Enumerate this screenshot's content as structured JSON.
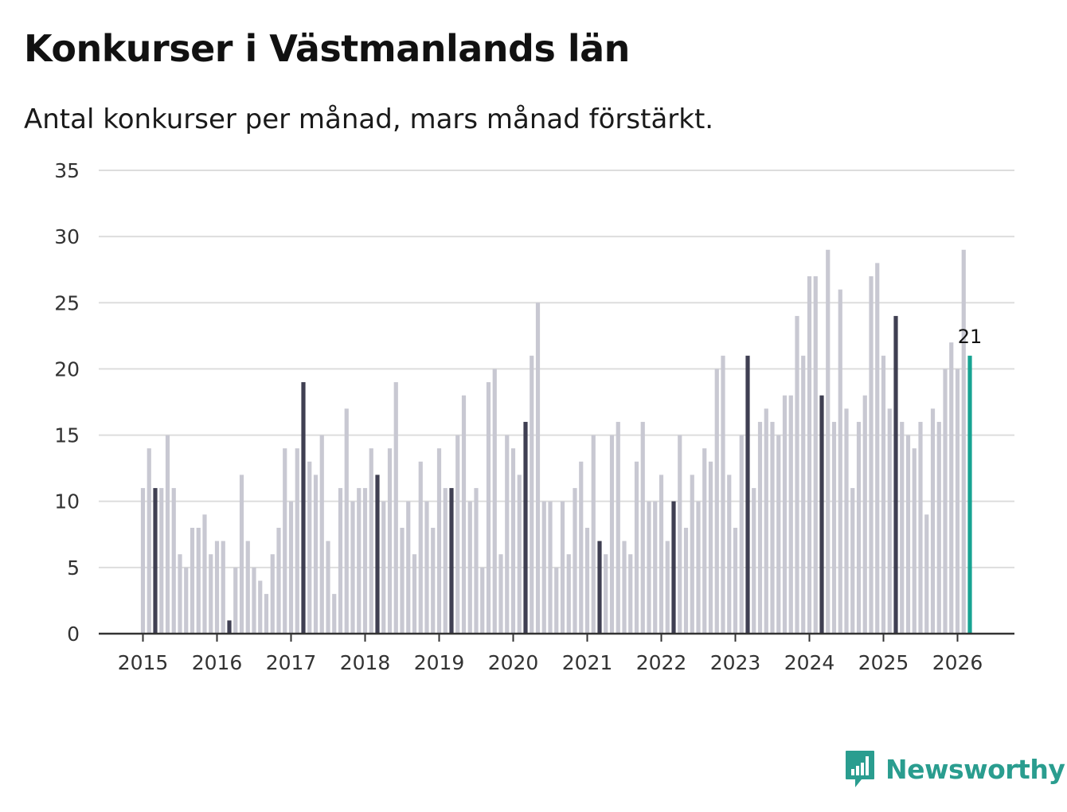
{
  "chart_data": {
    "type": "bar",
    "title": "Konkurser i Västmanlands län",
    "subtitle": "Antal konkurser per månad, mars månad förstärkt.",
    "xlabel": "",
    "ylabel": "",
    "ylim": [
      0,
      35
    ],
    "yticks": [
      "0",
      "5",
      "10",
      "15",
      "20",
      "25",
      "30",
      "35"
    ],
    "xticks": [
      "2015",
      "2016",
      "2017",
      "2018",
      "2019",
      "2020",
      "2021",
      "2022",
      "2023",
      "2024",
      "2025",
      "2026"
    ],
    "start": "2015-01",
    "highlight_month": "mars",
    "colors": {
      "default": "#c8c8d2",
      "march": "#3f3f52",
      "latest": "#17a392",
      "grid": "#dddddd",
      "axis": "#333333"
    },
    "annotation": {
      "label": "21",
      "month": "2026-03"
    },
    "values": [
      11,
      14,
      11,
      11,
      15,
      11,
      6,
      5,
      8,
      8,
      9,
      6,
      7,
      7,
      1,
      5,
      12,
      7,
      5,
      4,
      3,
      6,
      8,
      14,
      10,
      14,
      19,
      13,
      12,
      15,
      7,
      3,
      11,
      17,
      10,
      11,
      11,
      14,
      12,
      10,
      14,
      19,
      8,
      10,
      6,
      13,
      10,
      8,
      14,
      11,
      11,
      15,
      18,
      10,
      11,
      5,
      19,
      20,
      6,
      15,
      14,
      12,
      16,
      21,
      25,
      10,
      10,
      5,
      10,
      6,
      11,
      13,
      8,
      15,
      7,
      6,
      15,
      16,
      7,
      6,
      13,
      16,
      10,
      10,
      12,
      7,
      10,
      15,
      8,
      12,
      10,
      14,
      13,
      20,
      21,
      12,
      8,
      15,
      21,
      11,
      16,
      17,
      16,
      15,
      18,
      18,
      24,
      21,
      27,
      27,
      18,
      29,
      16,
      26,
      17,
      11,
      16,
      18,
      27,
      28,
      21,
      17,
      24,
      16,
      15,
      14,
      16,
      9,
      17,
      16,
      20,
      22,
      20,
      29,
      21
    ]
  },
  "brand": {
    "name": "Newsworthy",
    "logo_icon": "chart-bubble-icon",
    "color": "#2a9d8f"
  }
}
